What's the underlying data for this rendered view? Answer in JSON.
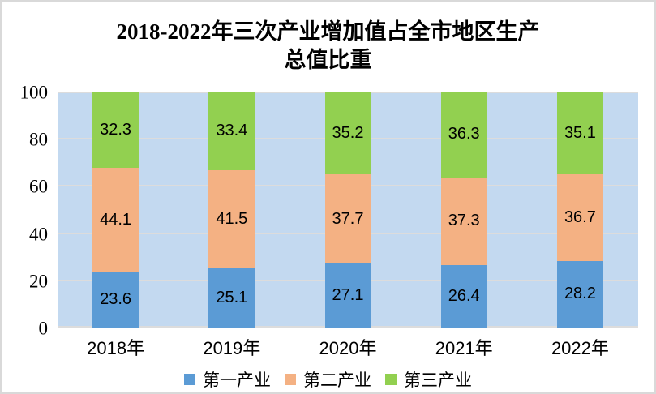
{
  "chart_data": {
    "type": "bar",
    "stacked": true,
    "title": "2018-2022年三次产业增加值占全市地区生产总值比重",
    "title_lines": [
      "2018-2022年三次产业增加值占全市地区生产",
      "总值比重"
    ],
    "categories": [
      "2018年",
      "2019年",
      "2020年",
      "2021年",
      "2022年"
    ],
    "series": [
      {
        "name": "第一产业",
        "color": "#5B9BD5",
        "values": [
          23.6,
          25.1,
          27.1,
          26.4,
          28.2
        ]
      },
      {
        "name": "第二产业",
        "color": "#F4B183",
        "values": [
          44.1,
          41.5,
          37.7,
          37.3,
          36.7
        ]
      },
      {
        "name": "第三产业",
        "color": "#92D050",
        "values": [
          32.3,
          33.4,
          35.2,
          36.3,
          35.1
        ]
      }
    ],
    "ylim": [
      0,
      100
    ],
    "y_ticks": [
      0,
      20,
      40,
      60,
      80,
      100
    ],
    "grid": true,
    "legend_position": "bottom",
    "colors": {
      "plot_background": "#C3D9F0",
      "gridline": "#DCDCDC",
      "border": "#D9D9D9",
      "label_text": "#000000"
    }
  }
}
